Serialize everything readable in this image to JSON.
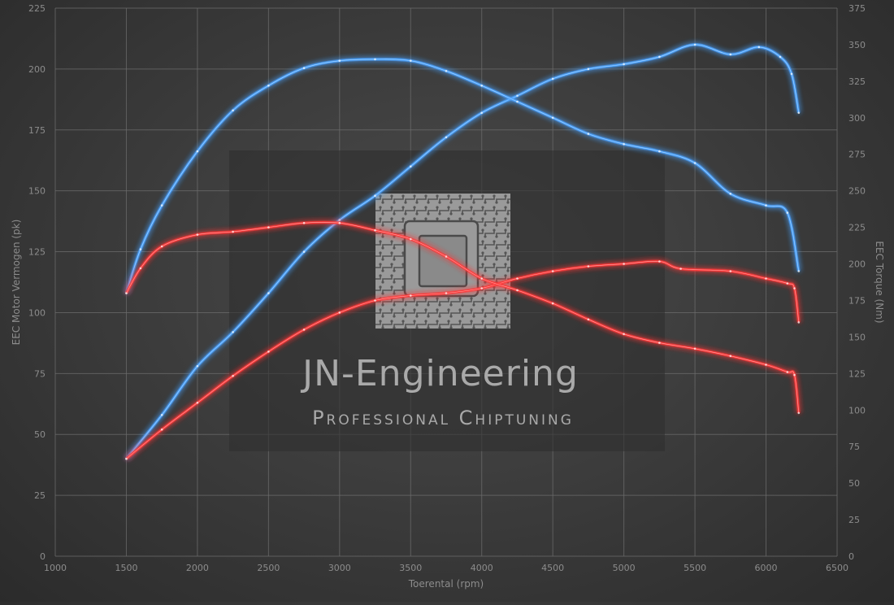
{
  "chart_data": {
    "type": "line",
    "title": "",
    "xlabel": "Toerental (rpm)",
    "ylabel_left": "EEC Motor Vermogen (pk)",
    "ylabel_right": "EEC Torque (Nm)",
    "xlim": [
      1000,
      6500
    ],
    "ylim_left": [
      0,
      225
    ],
    "ylim_right": [
      0,
      375
    ],
    "x_ticks": [
      1000,
      1500,
      2000,
      2500,
      3000,
      3500,
      4000,
      4500,
      5000,
      5500,
      6000,
      6500
    ],
    "y_ticks_left": [
      0,
      25,
      50,
      75,
      100,
      125,
      150,
      175,
      200,
      225
    ],
    "y_ticks_right": [
      0,
      25,
      50,
      75,
      100,
      125,
      150,
      175,
      200,
      225,
      250,
      275,
      300,
      325,
      350,
      375
    ],
    "grid": true,
    "colors": {
      "tuned": "#4aa3ff",
      "stock": "#ff3b3b"
    },
    "series": [
      {
        "key": "tuned-power",
        "axis": "left",
        "color_key": "tuned",
        "points": [
          [
            1500,
            40
          ],
          [
            1750,
            58
          ],
          [
            2000,
            78
          ],
          [
            2250,
            92
          ],
          [
            2500,
            108
          ],
          [
            2750,
            125
          ],
          [
            3000,
            138
          ],
          [
            3250,
            148
          ],
          [
            3500,
            160
          ],
          [
            3750,
            172
          ],
          [
            4000,
            182
          ],
          [
            4250,
            189
          ],
          [
            4500,
            196
          ],
          [
            4750,
            200
          ],
          [
            5000,
            202
          ],
          [
            5250,
            205
          ],
          [
            5500,
            210
          ],
          [
            5750,
            206
          ],
          [
            5950,
            209
          ],
          [
            6100,
            205
          ],
          [
            6180,
            198
          ],
          [
            6230,
            182
          ]
        ]
      },
      {
        "key": "tuned-torque",
        "axis": "right",
        "color_key": "tuned",
        "points": [
          [
            1500,
            180
          ],
          [
            1600,
            210
          ],
          [
            1750,
            240
          ],
          [
            2000,
            277
          ],
          [
            2250,
            305
          ],
          [
            2500,
            322
          ],
          [
            2750,
            334
          ],
          [
            3000,
            339
          ],
          [
            3250,
            340
          ],
          [
            3500,
            339
          ],
          [
            3750,
            332
          ],
          [
            4000,
            322
          ],
          [
            4250,
            311
          ],
          [
            4500,
            300
          ],
          [
            4750,
            289
          ],
          [
            5000,
            282
          ],
          [
            5250,
            277
          ],
          [
            5500,
            269
          ],
          [
            5750,
            248
          ],
          [
            6000,
            240
          ],
          [
            6150,
            235
          ],
          [
            6230,
            195
          ]
        ]
      },
      {
        "key": "stock-power",
        "axis": "left",
        "color_key": "stock",
        "points": [
          [
            1500,
            40
          ],
          [
            1750,
            52
          ],
          [
            2000,
            63
          ],
          [
            2250,
            74
          ],
          [
            2500,
            84
          ],
          [
            2750,
            93
          ],
          [
            3000,
            100
          ],
          [
            3250,
            105
          ],
          [
            3500,
            107
          ],
          [
            3750,
            108
          ],
          [
            4000,
            110
          ],
          [
            4250,
            114
          ],
          [
            4500,
            117
          ],
          [
            4750,
            119
          ],
          [
            5000,
            120
          ],
          [
            5250,
            121
          ],
          [
            5400,
            118
          ],
          [
            5750,
            117
          ],
          [
            6000,
            114
          ],
          [
            6150,
            112
          ],
          [
            6200,
            110
          ],
          [
            6230,
            96
          ]
        ]
      },
      {
        "key": "stock-torque",
        "axis": "right",
        "color_key": "stock",
        "points": [
          [
            1500,
            180
          ],
          [
            1600,
            197
          ],
          [
            1750,
            212
          ],
          [
            2000,
            220
          ],
          [
            2250,
            222
          ],
          [
            2500,
            225
          ],
          [
            2750,
            228
          ],
          [
            3000,
            228
          ],
          [
            3250,
            223
          ],
          [
            3500,
            217
          ],
          [
            3750,
            205
          ],
          [
            4000,
            190
          ],
          [
            4250,
            182
          ],
          [
            4500,
            173
          ],
          [
            4750,
            162
          ],
          [
            5000,
            152
          ],
          [
            5250,
            146
          ],
          [
            5500,
            142
          ],
          [
            5750,
            137
          ],
          [
            6000,
            131
          ],
          [
            6150,
            126
          ],
          [
            6200,
            124
          ],
          [
            6230,
            98
          ]
        ]
      }
    ]
  },
  "watermark": {
    "title": "JN-Engineering",
    "subtitle": "Professional Chiptuning",
    "logo_icon": "microchip-icon"
  }
}
